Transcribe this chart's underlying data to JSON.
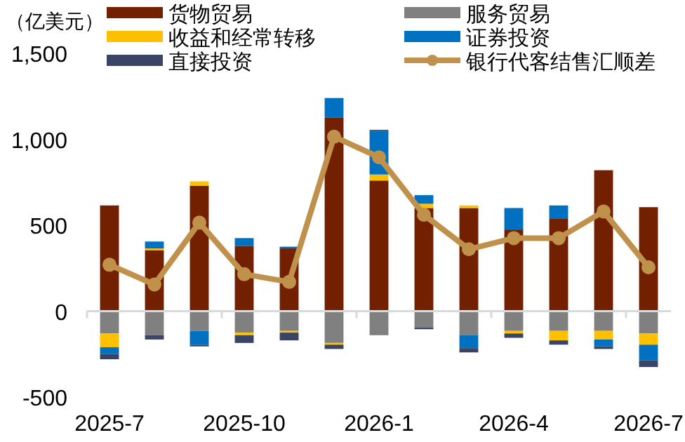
{
  "chart_data": {
    "type": "bar",
    "stacked": true,
    "ylabel": "（亿美元）",
    "categories": [
      "2025-7",
      null,
      null,
      "2025-10",
      null,
      null,
      "2026-1",
      null,
      null,
      "2026-4",
      null,
      null,
      "2026-7"
    ],
    "ylim": [
      -500,
      1500
    ],
    "yticks": [
      {
        "value": -500,
        "label": "-500"
      },
      0,
      500,
      {
        "value": 1000,
        "label": "1,000"
      },
      {
        "value": 1500,
        "label": "1,500"
      }
    ],
    "legend": "top",
    "marker": "circle",
    "series": [
      {
        "name": "货物贸易",
        "color": "#722000",
        "values": [
          615,
          355,
          730,
          380,
          365,
          1125,
          760,
          600,
          600,
          475,
          540,
          820,
          605
        ]
      },
      {
        "name": "服务贸易",
        "color": "#808080",
        "values": [
          -130,
          -140,
          -115,
          -125,
          -115,
          -185,
          -140,
          -95,
          -140,
          -115,
          -115,
          -115,
          -130
        ]
      },
      {
        "name": "收益和经常转移",
        "color": "#ffc000",
        "values": [
          -80,
          10,
          25,
          -15,
          -10,
          -10,
          35,
          25,
          15,
          -15,
          -55,
          -50,
          -65
        ]
      },
      {
        "name": "证券投资",
        "color": "#0070c0",
        "values": [
          -40,
          40,
          -80,
          45,
          10,
          115,
          255,
          50,
          -75,
          125,
          75,
          -40,
          -90
        ]
      },
      {
        "name": "直接投资",
        "color": "#3a4566",
        "values": [
          -30,
          -25,
          -10,
          -45,
          -45,
          -25,
          5,
          -10,
          -25,
          -25,
          -25,
          -15,
          -40
        ]
      },
      {
        "name": "银行代客结售汇顺差",
        "type": "line",
        "color": "#c0914a",
        "values": [
          270,
          155,
          515,
          215,
          170,
          1015,
          895,
          560,
          360,
          425,
          425,
          580,
          255
        ]
      }
    ]
  }
}
